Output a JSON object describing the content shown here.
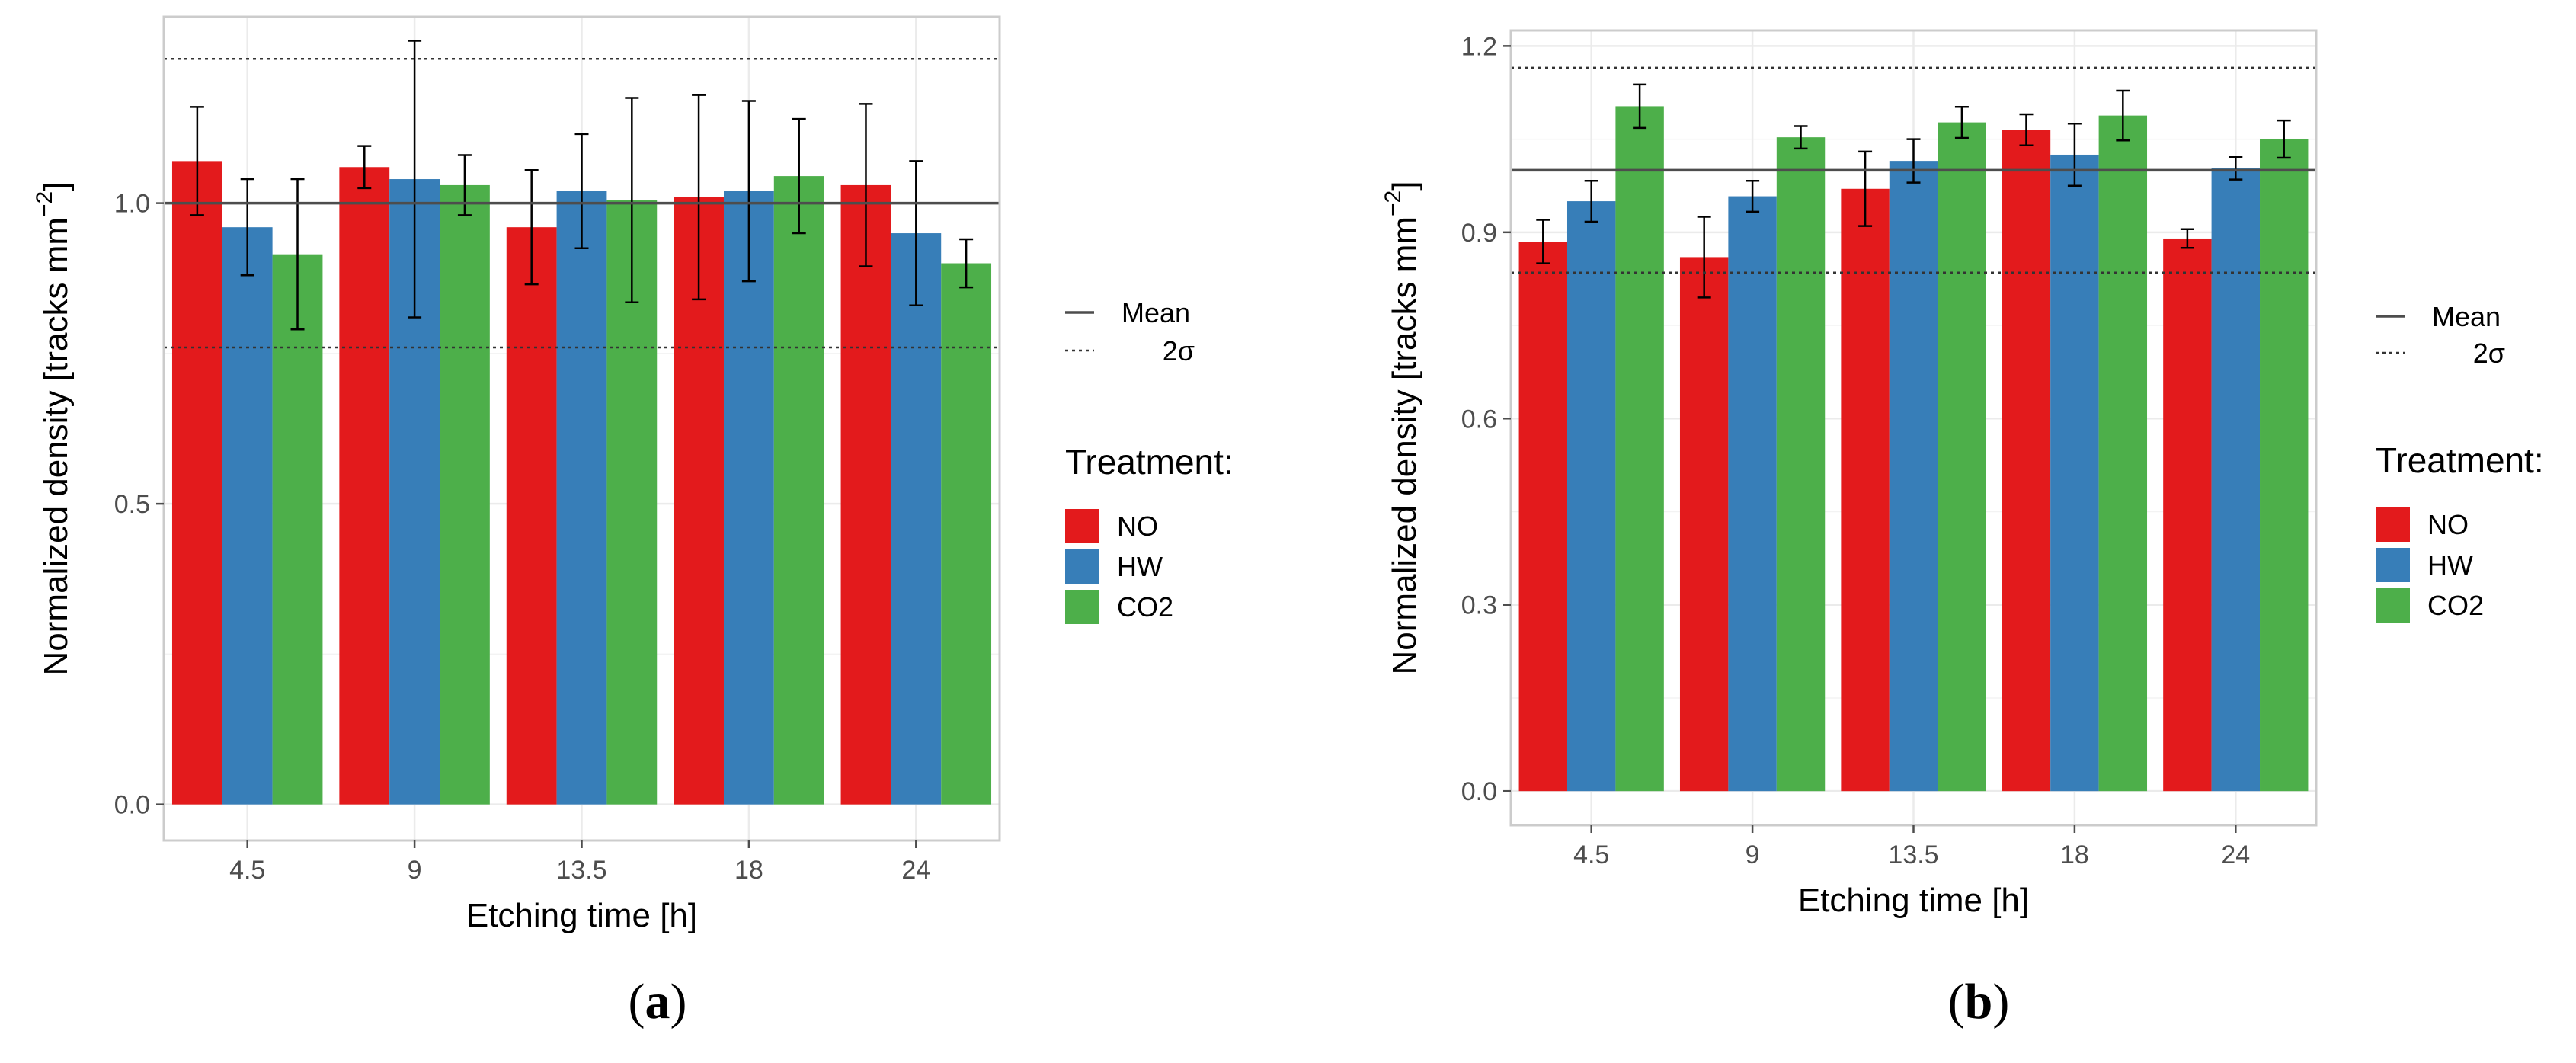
{
  "chart_data": [
    {
      "type": "bar",
      "caption": "(a)",
      "categories": [
        "4.5",
        "9",
        "13.5",
        "18",
        "24"
      ],
      "series": [
        {
          "name": "NO",
          "color": "#e31a1c",
          "values": [
            1.07,
            1.06,
            0.96,
            1.01,
            1.03
          ],
          "err": [
            0.09,
            0.035,
            0.095,
            0.17,
            0.135
          ]
        },
        {
          "name": "HW",
          "color": "#377eb8",
          "values": [
            0.96,
            1.04,
            1.02,
            1.02,
            0.95
          ],
          "err": [
            0.08,
            0.23,
            0.095,
            0.15,
            0.12
          ]
        },
        {
          "name": "CO2",
          "color": "#4daf4a",
          "values": [
            0.915,
            1.03,
            1.005,
            1.045,
            0.9
          ],
          "err": [
            0.125,
            0.05,
            0.17,
            0.095,
            0.04
          ]
        }
      ],
      "ylim": [
        -0.06,
        1.31
      ],
      "yticks": [
        0.0,
        0.5,
        1.0
      ],
      "ytick_labels": [
        "0.0",
        "0.5",
        "1.0"
      ],
      "mean": 1.0,
      "sigma_upper": 1.24,
      "sigma_lower": 0.76,
      "xlabel": "Etching time [h]",
      "ylabel": "Normalized density [tracks mm",
      "ylabel_sup": "−2",
      "ylabel_end": "]",
      "grid": true,
      "legend_lines": [
        {
          "label": "Mean",
          "style": "solid"
        },
        {
          "label": "2σ",
          "style": "dotted"
        }
      ],
      "legend_title": "Treatment:",
      "legend_position": "right"
    },
    {
      "type": "bar",
      "caption": "(b)",
      "categories": [
        "4.5",
        "9",
        "13.5",
        "18",
        "24"
      ],
      "series": [
        {
          "name": "NO",
          "color": "#e31a1c",
          "values": [
            0.885,
            0.86,
            0.97,
            1.065,
            0.89
          ],
          "err": [
            0.035,
            0.065,
            0.06,
            0.025,
            0.015
          ]
        },
        {
          "name": "HW",
          "color": "#377eb8",
          "values": [
            0.95,
            0.958,
            1.015,
            1.025,
            1.003
          ],
          "err": [
            0.033,
            0.025,
            0.035,
            0.05,
            0.018
          ]
        },
        {
          "name": "CO2",
          "color": "#4daf4a",
          "values": [
            1.103,
            1.053,
            1.077,
            1.088,
            1.05
          ],
          "err": [
            0.035,
            0.018,
            0.025,
            0.04,
            0.03
          ]
        }
      ],
      "ylim": [
        -0.055,
        1.225
      ],
      "yticks": [
        0.0,
        0.3,
        0.6,
        0.9,
        1.2
      ],
      "ytick_labels": [
        "0.0",
        "0.3",
        "0.6",
        "0.9",
        "1.2"
      ],
      "mean": 1.0,
      "sigma_upper": 1.165,
      "sigma_lower": 0.835,
      "xlabel": "Etching time [h]",
      "ylabel": "Normalized density [tracks mm",
      "ylabel_sup": "−2",
      "ylabel_end": "]",
      "grid": true,
      "legend_lines": [
        {
          "label": "Mean",
          "style": "solid"
        },
        {
          "label": "2σ",
          "style": "dotted"
        }
      ],
      "legend_title": "Treatment:",
      "legend_position": "right"
    }
  ]
}
